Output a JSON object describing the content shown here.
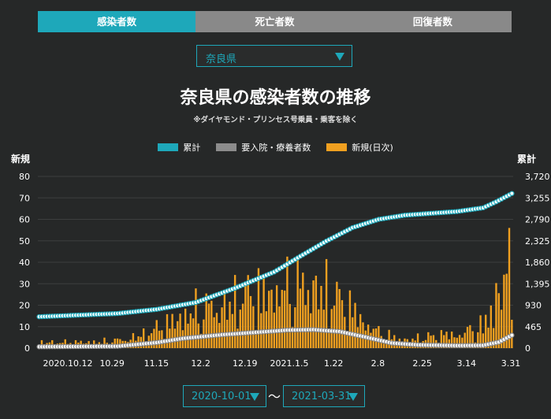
{
  "tabs": [
    {
      "label": "感染者数",
      "active": true
    },
    {
      "label": "死亡者数",
      "active": false
    },
    {
      "label": "回復者数",
      "active": false
    }
  ],
  "prefecture_select": {
    "value": "奈良県"
  },
  "date_range": {
    "start": "2020-10-01",
    "separator": "〜",
    "end": "2021-03-31"
  },
  "colors": {
    "cumulative": "#1ea8ba",
    "hospitalized": "#8c8c8c",
    "daily": "#f0a020",
    "accent": "#1ea8ba"
  },
  "chart_data": {
    "type": "bar",
    "title": "奈良県の感染者数の推移",
    "subtitle": "※ダイヤモンド・プリンセス号乗員・乗客を除く",
    "left_axis_label": "新規",
    "right_axis_label": "累計",
    "y_left_ticks": [
      "0",
      "10",
      "20",
      "30",
      "40",
      "50",
      "60",
      "70",
      "80"
    ],
    "y_right_ticks": [
      "0",
      "465",
      "930",
      "1,395",
      "1,860",
      "2,325",
      "2,790",
      "3,255",
      "3,720"
    ],
    "ylim_left": [
      0,
      80
    ],
    "ylim_right": [
      0,
      3720
    ],
    "x_tick_labels": [
      "2020.10.12",
      "10.29",
      "11.15",
      "12.2",
      "12.19",
      "2021.1.5",
      "1.22",
      "2.8",
      "2.25",
      "3.14",
      "3.31"
    ],
    "grid": true,
    "legend_position": "top-center",
    "series": [
      {
        "name": "累計",
        "type": "line",
        "axis": "right",
        "anchors": [
          [
            0,
            680
          ],
          [
            30,
            750
          ],
          [
            45,
            840
          ],
          [
            60,
            990
          ],
          [
            75,
            1300
          ],
          [
            90,
            1650
          ],
          [
            100,
            1990
          ],
          [
            110,
            2320
          ],
          [
            120,
            2610
          ],
          [
            130,
            2790
          ],
          [
            140,
            2880
          ],
          [
            150,
            2920
          ],
          [
            160,
            2960
          ],
          [
            170,
            3040
          ],
          [
            175,
            3170
          ],
          [
            181,
            3350
          ]
        ]
      },
      {
        "name": "要入院・療養者数",
        "type": "line",
        "axis": "right",
        "anchors": [
          [
            0,
            30
          ],
          [
            30,
            40
          ],
          [
            45,
            120
          ],
          [
            55,
            210
          ],
          [
            70,
            290
          ],
          [
            80,
            330
          ],
          [
            95,
            390
          ],
          [
            105,
            400
          ],
          [
            115,
            360
          ],
          [
            125,
            240
          ],
          [
            135,
            110
          ],
          [
            145,
            70
          ],
          [
            160,
            55
          ],
          [
            170,
            60
          ],
          [
            176,
            130
          ],
          [
            181,
            280
          ]
        ]
      },
      {
        "name": "新規(日次)",
        "type": "bar",
        "axis": "left",
        "anchors": [
          [
            0,
            3
          ],
          [
            20,
            3
          ],
          [
            30,
            4
          ],
          [
            40,
            7
          ],
          [
            50,
            13
          ],
          [
            60,
            20
          ],
          [
            70,
            22
          ],
          [
            80,
            28
          ],
          [
            90,
            30
          ],
          [
            100,
            33
          ],
          [
            110,
            30
          ],
          [
            120,
            20
          ],
          [
            130,
            8
          ],
          [
            140,
            4
          ],
          [
            150,
            6
          ],
          [
            160,
            8
          ],
          [
            165,
            9
          ],
          [
            170,
            12
          ],
          [
            175,
            25
          ],
          [
            181,
            46
          ]
        ]
      }
    ]
  }
}
